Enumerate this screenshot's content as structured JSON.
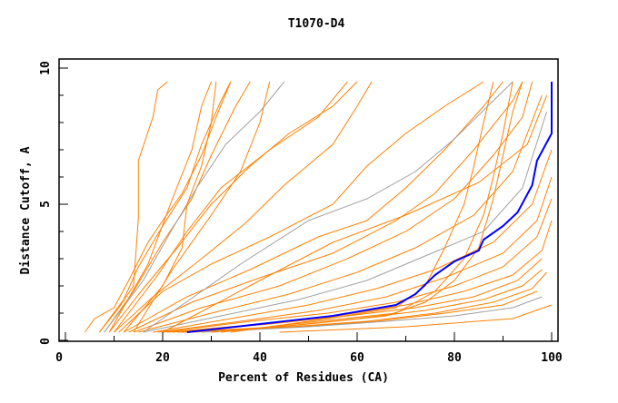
{
  "chart_data": {
    "type": "line",
    "title": "T1070-D4",
    "xlabel": "Percent of Residues (CA)",
    "ylabel": "Distance Cutoff, A",
    "xlim": [
      0,
      100
    ],
    "ylim": [
      0,
      10
    ],
    "xticks": [
      "0",
      "20",
      "40",
      "60",
      "80",
      "100"
    ],
    "yticks": [
      "0",
      "5",
      "10"
    ],
    "grid": false,
    "colors": {
      "models": "#ff8000",
      "highlight": "#0000ff",
      "model_alt": "#a0a0a0"
    },
    "highlight_series": [
      [
        25,
        0.3
      ],
      [
        40,
        0.6
      ],
      [
        55,
        0.9
      ],
      [
        68,
        1.3
      ],
      [
        72,
        1.7
      ],
      [
        76,
        2.4
      ],
      [
        80,
        2.9
      ],
      [
        85,
        3.3
      ],
      [
        86,
        3.7
      ],
      [
        90,
        4.2
      ],
      [
        93,
        4.7
      ],
      [
        96,
        5.7
      ],
      [
        97,
        6.6
      ],
      [
        100,
        7.6
      ],
      [
        100,
        9.5
      ]
    ],
    "model_series": [
      [
        [
          4,
          0.3
        ],
        [
          6,
          0.8
        ],
        [
          10,
          1.2
        ],
        [
          13,
          2.2
        ],
        [
          17,
          3.6
        ],
        [
          20,
          4.4
        ],
        [
          24,
          5.4
        ],
        [
          28,
          6.8
        ],
        [
          31,
          8.2
        ],
        [
          34,
          9.5
        ]
      ],
      [
        [
          7,
          0.3
        ],
        [
          12,
          1.5
        ],
        [
          15,
          2.7
        ],
        [
          20,
          4.2
        ],
        [
          25,
          5.6
        ],
        [
          28,
          7.2
        ],
        [
          32,
          8.8
        ],
        [
          34,
          9.5
        ]
      ],
      [
        [
          7,
          0.3
        ],
        [
          11,
          1.2
        ],
        [
          14,
          2.0
        ],
        [
          15,
          4.5
        ],
        [
          15,
          6.6
        ],
        [
          18,
          8.2
        ],
        [
          19,
          9.2
        ],
        [
          21,
          9.5
        ]
      ],
      [
        [
          8,
          0.3
        ],
        [
          14,
          1.8
        ],
        [
          20,
          3.6
        ],
        [
          26,
          5.2
        ],
        [
          30,
          6.8
        ],
        [
          35,
          8.6
        ],
        [
          38,
          9.5
        ]
      ],
      [
        [
          8,
          0.3
        ],
        [
          16,
          2.2
        ],
        [
          22,
          4.1
        ],
        [
          27,
          5.6
        ],
        [
          33,
          7.2
        ],
        [
          40,
          8.4
        ],
        [
          45,
          9.5
        ]
      ],
      [
        [
          9,
          0.3
        ],
        [
          16,
          1.9
        ],
        [
          23,
          3.4
        ],
        [
          30,
          5.0
        ],
        [
          38,
          6.4
        ],
        [
          46,
          7.6
        ],
        [
          55,
          8.6
        ],
        [
          60,
          9.5
        ]
      ],
      [
        [
          10,
          0.3
        ],
        [
          19,
          2.4
        ],
        [
          25,
          4.0
        ],
        [
          32,
          5.6
        ],
        [
          42,
          7.0
        ],
        [
          52,
          8.2
        ],
        [
          58,
          9.5
        ]
      ],
      [
        [
          10,
          0.3
        ],
        [
          18,
          1.6
        ],
        [
          28,
          3.0
        ],
        [
          37,
          4.3
        ],
        [
          45,
          5.7
        ],
        [
          55,
          7.2
        ],
        [
          60,
          8.6
        ],
        [
          63,
          9.5
        ]
      ],
      [
        [
          11,
          0.3
        ],
        [
          20,
          1.8
        ],
        [
          30,
          2.8
        ],
        [
          42,
          3.8
        ],
        [
          55,
          5.0
        ],
        [
          62,
          6.4
        ],
        [
          70,
          7.6
        ],
        [
          78,
          8.6
        ],
        [
          86,
          9.5
        ]
      ],
      [
        [
          12,
          0.3
        ],
        [
          25,
          1.6
        ],
        [
          38,
          2.6
        ],
        [
          52,
          3.8
        ],
        [
          62,
          4.4
        ],
        [
          70,
          5.6
        ],
        [
          78,
          7.0
        ],
        [
          86,
          8.6
        ],
        [
          90,
          9.5
        ]
      ],
      [
        [
          13,
          0.3
        ],
        [
          26,
          1.4
        ],
        [
          40,
          2.3
        ],
        [
          55,
          3.2
        ],
        [
          68,
          4.4
        ],
        [
          76,
          5.4
        ],
        [
          84,
          7.0
        ],
        [
          92,
          8.8
        ],
        [
          94,
          9.5
        ]
      ],
      [
        [
          14,
          0.3
        ],
        [
          28,
          1.2
        ],
        [
          44,
          2.0
        ],
        [
          58,
          3.0
        ],
        [
          70,
          4.0
        ],
        [
          80,
          5.2
        ],
        [
          88,
          6.8
        ],
        [
          94,
          8.2
        ],
        [
          96,
          9.5
        ]
      ],
      [
        [
          15,
          0.3
        ],
        [
          30,
          1.0
        ],
        [
          46,
          1.7
        ],
        [
          60,
          2.5
        ],
        [
          72,
          3.4
        ],
        [
          84,
          4.6
        ],
        [
          92,
          6.2
        ],
        [
          98,
          9.0
        ]
      ],
      [
        [
          16,
          0.3
        ],
        [
          32,
          0.9
        ],
        [
          48,
          1.5
        ],
        [
          62,
          2.2
        ],
        [
          74,
          3.1
        ],
        [
          86,
          4.0
        ],
        [
          94,
          5.6
        ],
        [
          99,
          8.4
        ]
      ],
      [
        [
          18,
          0.3
        ],
        [
          34,
          0.8
        ],
        [
          50,
          1.3
        ],
        [
          64,
          1.9
        ],
        [
          76,
          2.6
        ],
        [
          88,
          3.6
        ],
        [
          96,
          5.0
        ],
        [
          100,
          7.0
        ]
      ],
      [
        [
          19,
          0.3
        ],
        [
          36,
          0.7
        ],
        [
          52,
          1.1
        ],
        [
          66,
          1.6
        ],
        [
          78,
          2.3
        ],
        [
          90,
          3.2
        ],
        [
          97,
          4.4
        ],
        [
          100,
          6.0
        ]
      ],
      [
        [
          20,
          0.3
        ],
        [
          38,
          0.7
        ],
        [
          54,
          1.0
        ],
        [
          68,
          1.4
        ],
        [
          80,
          2.0
        ],
        [
          90,
          2.7
        ],
        [
          97,
          3.8
        ],
        [
          100,
          5.2
        ]
      ],
      [
        [
          21,
          0.3
        ],
        [
          40,
          0.6
        ],
        [
          56,
          0.9
        ],
        [
          70,
          1.3
        ],
        [
          82,
          1.8
        ],
        [
          92,
          2.4
        ],
        [
          98,
          3.3
        ],
        [
          100,
          4.4
        ]
      ],
      [
        [
          22,
          0.3
        ],
        [
          42,
          0.6
        ],
        [
          58,
          0.9
        ],
        [
          72,
          1.2
        ],
        [
          84,
          1.6
        ],
        [
          93,
          2.2
        ],
        [
          98,
          3.0
        ]
      ],
      [
        [
          23,
          0.3
        ],
        [
          44,
          0.5
        ],
        [
          60,
          0.8
        ],
        [
          74,
          1.1
        ],
        [
          86,
          1.5
        ],
        [
          94,
          2.0
        ],
        [
          98,
          2.6
        ]
      ],
      [
        [
          24,
          0.3
        ],
        [
          46,
          0.5
        ],
        [
          62,
          0.7
        ],
        [
          76,
          1.0
        ],
        [
          88,
          1.4
        ],
        [
          96,
          1.9
        ],
        [
          99,
          2.5
        ]
      ],
      [
        [
          26,
          0.3
        ],
        [
          48,
          0.5
        ],
        [
          64,
          0.7
        ],
        [
          78,
          1.0
        ],
        [
          90,
          1.3
        ],
        [
          97,
          1.8
        ]
      ],
      [
        [
          28,
          0.3
        ],
        [
          50,
          0.5
        ],
        [
          66,
          0.7
        ],
        [
          80,
          0.9
        ],
        [
          92,
          1.2
        ],
        [
          98,
          1.6
        ]
      ],
      [
        [
          44,
          0.3
        ],
        [
          70,
          0.5
        ],
        [
          92,
          0.8
        ],
        [
          100,
          1.3
        ]
      ],
      [
        [
          30,
          0.3
        ],
        [
          50,
          0.6
        ],
        [
          66,
          0.9
        ],
        [
          74,
          1.4
        ],
        [
          80,
          2.2
        ],
        [
          85,
          3.4
        ],
        [
          88,
          5.2
        ],
        [
          90,
          6.8
        ],
        [
          92,
          8.4
        ],
        [
          94,
          9.5
        ]
      ],
      [
        [
          32,
          0.3
        ],
        [
          52,
          0.7
        ],
        [
          68,
          1.0
        ],
        [
          76,
          1.8
        ],
        [
          82,
          3.0
        ],
        [
          86,
          4.6
        ],
        [
          88,
          6.0
        ],
        [
          90,
          7.6
        ],
        [
          92,
          9.5
        ]
      ],
      [
        [
          34,
          0.3
        ],
        [
          54,
          0.8
        ],
        [
          68,
          1.2
        ],
        [
          74,
          2.0
        ],
        [
          78,
          3.4
        ],
        [
          82,
          5.0
        ],
        [
          84,
          6.4
        ],
        [
          86,
          8.0
        ],
        [
          88,
          9.5
        ]
      ],
      [
        [
          12,
          0.3
        ],
        [
          20,
          2.0
        ],
        [
          24,
          3.4
        ],
        [
          25,
          5.0
        ],
        [
          28,
          6.4
        ],
        [
          30,
          8.0
        ],
        [
          31,
          9.5
        ]
      ],
      [
        [
          14,
          0.3
        ],
        [
          22,
          2.6
        ],
        [
          30,
          4.6
        ],
        [
          36,
          6.2
        ],
        [
          40,
          8.0
        ],
        [
          42,
          9.5
        ]
      ],
      [
        [
          9,
          0.3
        ],
        [
          17,
          2.8
        ],
        [
          22,
          5.2
        ],
        [
          26,
          7.0
        ],
        [
          28,
          8.6
        ],
        [
          30,
          9.5
        ]
      ],
      [
        [
          20,
          0.3
        ],
        [
          40,
          2.2
        ],
        [
          55,
          3.6
        ],
        [
          70,
          4.6
        ],
        [
          85,
          5.8
        ],
        [
          95,
          7.2
        ],
        [
          99,
          9.0
        ]
      ],
      [
        [
          16,
          0.3
        ],
        [
          36,
          2.8
        ],
        [
          50,
          4.4
        ],
        [
          62,
          5.2
        ],
        [
          72,
          6.2
        ],
        [
          80,
          7.4
        ],
        [
          88,
          8.8
        ],
        [
          92,
          9.5
        ]
      ]
    ]
  }
}
